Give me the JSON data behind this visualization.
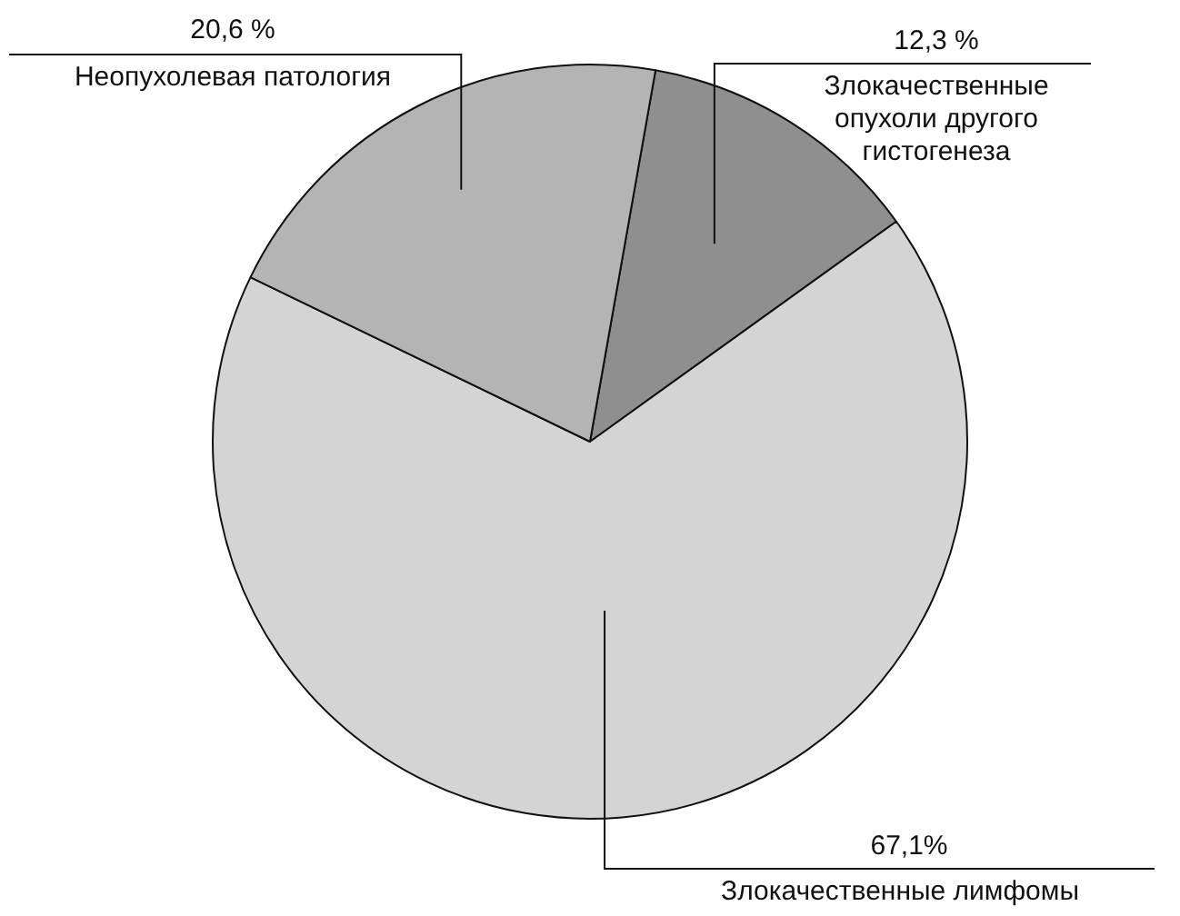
{
  "chart_data": {
    "type": "pie",
    "categories": [
      "Злокачественные опухоли другого гистогенеза",
      "Злокачественные лимфомы",
      "Неопухолевая патология"
    ],
    "values": [
      12.3,
      67.1,
      20.6
    ],
    "value_labels": [
      "12,3 %",
      "67,1%",
      "20,6 %"
    ],
    "colors": [
      "#8f8f8f",
      "#d4d4d4",
      "#b4b4b4"
    ],
    "legend": false
  }
}
